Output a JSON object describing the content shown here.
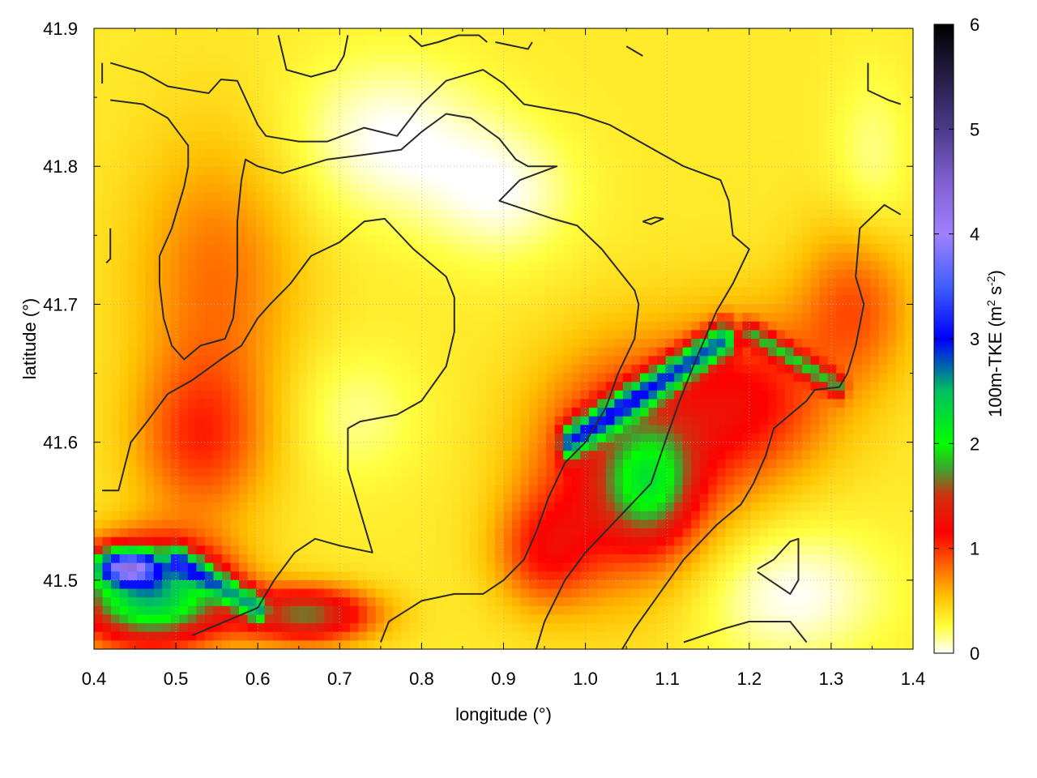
{
  "chart_data": {
    "type": "heatmap",
    "title": "",
    "xlabel": "longitude (°)",
    "ylabel": "latitude (°)",
    "xlim": [
      0.4,
      1.4
    ],
    "ylim": [
      41.45,
      41.9
    ],
    "x_ticks": [
      {
        "value": 0.4,
        "label": "0.4"
      },
      {
        "value": 0.5,
        "label": "0.5"
      },
      {
        "value": 0.6,
        "label": "0.6"
      },
      {
        "value": 0.7,
        "label": "0.7"
      },
      {
        "value": 0.8,
        "label": "0.8"
      },
      {
        "value": 0.9,
        "label": "0.9"
      },
      {
        "value": 1.0,
        "label": "1.0"
      },
      {
        "value": 1.1,
        "label": "1.1"
      },
      {
        "value": 1.2,
        "label": "1.2"
      },
      {
        "value": 1.3,
        "label": "1.3"
      },
      {
        "value": 1.4,
        "label": "1.4"
      }
    ],
    "y_ticks": [
      {
        "value": 41.5,
        "label": "41.5"
      },
      {
        "value": 41.6,
        "label": "41.6"
      },
      {
        "value": 41.7,
        "label": "41.7"
      },
      {
        "value": 41.8,
        "label": "41.8"
      },
      {
        "value": 41.9,
        "label": "41.9"
      }
    ],
    "grid": true,
    "colorbar": {
      "label": "100m-TKE (m² s⁻²)",
      "label_main": "100m-TKE (m",
      "label_sup1": "2",
      "label_mid": " s",
      "label_sup2": "-2",
      "label_end": ")",
      "range": [
        0,
        6
      ],
      "ticks": [
        {
          "value": 0,
          "label": "0"
        },
        {
          "value": 1,
          "label": "1"
        },
        {
          "value": 2,
          "label": "2"
        },
        {
          "value": 3,
          "label": "3"
        },
        {
          "value": 4,
          "label": "4"
        },
        {
          "value": 5,
          "label": "5"
        },
        {
          "value": 6,
          "label": "6"
        }
      ],
      "stops": [
        {
          "value": 0.0,
          "color": "#ffffff"
        },
        {
          "value": 0.25,
          "color": "#ffff40"
        },
        {
          "value": 0.55,
          "color": "#ffc000"
        },
        {
          "value": 0.85,
          "color": "#ff6000"
        },
        {
          "value": 1.15,
          "color": "#ff0000"
        },
        {
          "value": 1.5,
          "color": "#d03010"
        },
        {
          "value": 1.75,
          "color": "#40a030"
        },
        {
          "value": 2.0,
          "color": "#00ff00"
        },
        {
          "value": 2.5,
          "color": "#00c060"
        },
        {
          "value": 3.0,
          "color": "#0000ff"
        },
        {
          "value": 3.5,
          "color": "#4060ff"
        },
        {
          "value": 4.0,
          "color": "#a080ff"
        },
        {
          "value": 4.5,
          "color": "#8060d0"
        },
        {
          "value": 5.0,
          "color": "#4a3a8a"
        },
        {
          "value": 6.0,
          "color": "#000000"
        }
      ]
    },
    "field_features": [
      {
        "kind": "base",
        "value": 0.35
      },
      {
        "kind": "blob",
        "cx": 0.76,
        "cy": 41.82,
        "sx": 0.12,
        "sy": 0.06,
        "value": -0.35
      },
      {
        "kind": "blob",
        "cx": 0.9,
        "cy": 41.78,
        "sx": 0.09,
        "sy": 0.05,
        "value": -0.3
      },
      {
        "kind": "blob",
        "cx": 0.72,
        "cy": 41.62,
        "sx": 0.08,
        "sy": 0.05,
        "value": -0.2
      },
      {
        "kind": "blob",
        "cx": 1.25,
        "cy": 41.49,
        "sx": 0.12,
        "sy": 0.05,
        "value": -0.35
      },
      {
        "kind": "blob",
        "cx": 1.35,
        "cy": 41.8,
        "sx": 0.05,
        "sy": 0.07,
        "value": -0.2
      },
      {
        "kind": "blob",
        "cx": 0.55,
        "cy": 41.72,
        "sx": 0.1,
        "sy": 0.1,
        "value": 0.45
      },
      {
        "kind": "blob",
        "cx": 0.53,
        "cy": 41.6,
        "sx": 0.08,
        "sy": 0.06,
        "value": 0.6
      },
      {
        "kind": "blob",
        "cx": 1.05,
        "cy": 41.58,
        "sx": 0.11,
        "sy": 0.08,
        "value": 1.0
      },
      {
        "kind": "blob",
        "cx": 1.2,
        "cy": 41.63,
        "sx": 0.1,
        "sy": 0.06,
        "value": 0.75
      },
      {
        "kind": "blob",
        "cx": 1.33,
        "cy": 41.7,
        "sx": 0.07,
        "sy": 0.06,
        "value": 0.55
      },
      {
        "kind": "blob",
        "cx": 1.08,
        "cy": 41.57,
        "sx": 0.05,
        "sy": 0.04,
        "value": 0.9
      },
      {
        "kind": "blob",
        "cx": 0.95,
        "cy": 41.52,
        "sx": 0.06,
        "sy": 0.04,
        "value": 0.6
      },
      {
        "kind": "blob",
        "cx": 0.47,
        "cy": 41.49,
        "sx": 0.09,
        "sy": 0.035,
        "value": 2.2
      },
      {
        "kind": "blob",
        "cx": 0.44,
        "cy": 41.51,
        "sx": 0.04,
        "sy": 0.012,
        "value": 2.5
      },
      {
        "kind": "blob",
        "cx": 0.66,
        "cy": 41.475,
        "sx": 0.08,
        "sy": 0.02,
        "value": 1.3
      },
      {
        "kind": "ridge",
        "x1": 0.98,
        "y1": 41.6,
        "x2": 1.17,
        "y2": 41.675,
        "width": 0.012,
        "value": 1.9
      },
      {
        "kind": "ridge",
        "x1": 1.2,
        "y1": 41.68,
        "x2": 1.31,
        "y2": 41.64,
        "width": 0.008,
        "value": 1.0
      },
      {
        "kind": "ridge",
        "x1": 0.5,
        "y1": 41.515,
        "x2": 0.6,
        "y2": 41.48,
        "width": 0.01,
        "value": 1.4
      }
    ],
    "contours": [
      [
        [
          0.42,
          41.875
        ],
        [
          0.46,
          41.868
        ],
        [
          0.49,
          41.858
        ],
        [
          0.54,
          41.853
        ],
        [
          0.555,
          41.863
        ],
        [
          0.575,
          41.862
        ],
        [
          0.6,
          41.83
        ],
        [
          0.61,
          41.822
        ],
        [
          0.65,
          41.818
        ],
        [
          0.685,
          41.818
        ],
        [
          0.73,
          41.828
        ],
        [
          0.77,
          41.822
        ],
        [
          0.8,
          41.845
        ],
        [
          0.83,
          41.862
        ],
        [
          0.875,
          41.87
        ],
        [
          0.9,
          41.86
        ],
        [
          0.925,
          41.845
        ],
        [
          0.99,
          41.838
        ],
        [
          1.03,
          41.83
        ],
        [
          1.09,
          41.81
        ],
        [
          1.12,
          41.8
        ],
        [
          1.165,
          41.79
        ],
        [
          1.175,
          41.775
        ],
        [
          1.18,
          41.75
        ],
        [
          1.2,
          41.74
        ],
        [
          1.18,
          41.715
        ],
        [
          1.16,
          41.695
        ],
        [
          1.135,
          41.66
        ],
        [
          1.115,
          41.63
        ],
        [
          1.1,
          41.605
        ],
        [
          1.08,
          41.57
        ],
        [
          1.04,
          41.545
        ],
        [
          1.0,
          41.52
        ],
        [
          0.975,
          41.5
        ],
        [
          0.95,
          41.47
        ],
        [
          0.94,
          41.45
        ]
      ],
      [
        [
          0.42,
          41.848
        ],
        [
          0.46,
          41.845
        ],
        [
          0.49,
          41.835
        ],
        [
          0.515,
          41.815
        ],
        [
          0.515,
          41.8
        ],
        [
          0.51,
          41.785
        ],
        [
          0.495,
          41.755
        ],
        [
          0.48,
          41.735
        ],
        [
          0.48,
          41.715
        ],
        [
          0.485,
          41.69
        ],
        [
          0.495,
          41.67
        ],
        [
          0.51,
          41.66
        ],
        [
          0.53,
          41.67
        ],
        [
          0.56,
          41.675
        ],
        [
          0.57,
          41.69
        ],
        [
          0.575,
          41.72
        ],
        [
          0.575,
          41.76
        ],
        [
          0.58,
          41.79
        ],
        [
          0.585,
          41.805
        ],
        [
          0.6,
          41.8
        ],
        [
          0.63,
          41.795
        ],
        [
          0.685,
          41.805
        ],
        [
          0.725,
          41.808
        ],
        [
          0.775,
          41.812
        ],
        [
          0.8,
          41.825
        ],
        [
          0.83,
          41.838
        ],
        [
          0.86,
          41.835
        ],
        [
          0.895,
          41.82
        ],
        [
          0.915,
          41.805
        ],
        [
          0.93,
          41.8
        ],
        [
          0.945,
          41.8
        ],
        [
          0.965,
          41.8
        ],
        [
          0.92,
          41.79
        ],
        [
          0.895,
          41.775
        ],
        [
          0.92,
          41.77
        ],
        [
          0.96,
          41.762
        ],
        [
          0.99,
          41.757
        ],
        [
          1.02,
          41.74
        ],
        [
          1.04,
          41.725
        ],
        [
          1.06,
          41.71
        ],
        [
          1.065,
          41.7
        ],
        [
          1.06,
          41.675
        ],
        [
          1.04,
          41.65
        ],
        [
          1.025,
          41.625
        ],
        [
          1.0,
          41.6
        ],
        [
          0.975,
          41.585
        ],
        [
          0.955,
          41.56
        ],
        [
          0.94,
          41.535
        ],
        [
          0.925,
          41.515
        ],
        [
          0.9,
          41.5
        ],
        [
          0.875,
          41.49
        ],
        [
          0.84,
          41.49
        ],
        [
          0.8,
          41.485
        ],
        [
          0.76,
          41.47
        ],
        [
          0.75,
          41.455
        ]
      ],
      [
        [
          0.41,
          41.565
        ],
        [
          0.43,
          41.565
        ],
        [
          0.445,
          41.6
        ],
        [
          0.465,
          41.615
        ],
        [
          0.49,
          41.635
        ],
        [
          0.52,
          41.645
        ],
        [
          0.555,
          41.66
        ],
        [
          0.58,
          41.67
        ],
        [
          0.6,
          41.69
        ],
        [
          0.615,
          41.7
        ],
        [
          0.64,
          41.715
        ],
        [
          0.665,
          41.735
        ],
        [
          0.7,
          41.745
        ],
        [
          0.73,
          41.76
        ],
        [
          0.755,
          41.762
        ],
        [
          0.79,
          41.74
        ],
        [
          0.81,
          41.73
        ],
        [
          0.83,
          41.72
        ],
        [
          0.84,
          41.705
        ],
        [
          0.84,
          41.68
        ],
        [
          0.83,
          41.655
        ],
        [
          0.8,
          41.63
        ],
        [
          0.77,
          41.62
        ],
        [
          0.725,
          41.615
        ],
        [
          0.71,
          41.61
        ],
        [
          0.71,
          41.58
        ],
        [
          0.72,
          41.56
        ],
        [
          0.73,
          41.54
        ],
        [
          0.74,
          41.52
        ],
        [
          0.7,
          41.525
        ],
        [
          0.67,
          41.53
        ],
        [
          0.645,
          41.52
        ],
        [
          0.62,
          41.5
        ],
        [
          0.6,
          41.48
        ],
        [
          0.56,
          41.47
        ],
        [
          0.52,
          41.46
        ]
      ],
      [
        [
          1.385,
          41.765
        ],
        [
          1.365,
          41.772
        ],
        [
          1.335,
          41.755
        ],
        [
          1.33,
          41.72
        ],
        [
          1.34,
          41.7
        ],
        [
          1.33,
          41.67
        ],
        [
          1.32,
          41.65
        ],
        [
          1.31,
          41.64
        ],
        [
          1.28,
          41.638
        ],
        [
          1.27,
          41.63
        ],
        [
          1.25,
          41.62
        ],
        [
          1.23,
          41.61
        ],
        [
          1.22,
          41.59
        ],
        [
          1.205,
          41.57
        ],
        [
          1.19,
          41.555
        ],
        [
          1.16,
          41.54
        ],
        [
          1.12,
          41.515
        ],
        [
          1.09,
          41.49
        ],
        [
          1.06,
          41.465
        ],
        [
          1.045,
          41.45
        ]
      ],
      [
        [
          0.41,
          41.875
        ],
        [
          0.41,
          41.86
        ]
      ],
      [
        [
          0.42,
          41.755
        ],
        [
          0.42,
          41.733
        ],
        [
          0.415,
          41.73
        ]
      ],
      [
        [
          0.625,
          41.895
        ],
        [
          0.635,
          41.87
        ],
        [
          0.665,
          41.865
        ],
        [
          0.695,
          41.87
        ],
        [
          0.705,
          41.88
        ],
        [
          0.71,
          41.895
        ]
      ],
      [
        [
          0.785,
          41.895
        ],
        [
          0.8,
          41.887
        ],
        [
          0.82,
          41.89
        ],
        [
          0.845,
          41.895
        ],
        [
          0.87,
          41.895
        ],
        [
          0.88,
          41.89
        ]
      ],
      [
        [
          0.89,
          41.89
        ],
        [
          0.93,
          41.885
        ],
        [
          0.935,
          41.89
        ]
      ],
      [
        [
          1.05,
          41.887
        ],
        [
          1.07,
          41.88
        ]
      ],
      [
        [
          1.345,
          41.875
        ],
        [
          1.345,
          41.855
        ],
        [
          1.37,
          41.848
        ],
        [
          1.385,
          41.845
        ]
      ],
      [
        [
          1.07,
          41.76
        ],
        [
          1.085,
          41.763
        ],
        [
          1.095,
          41.762
        ],
        [
          1.08,
          41.758
        ],
        [
          1.07,
          41.76
        ]
      ],
      [
        [
          1.21,
          41.508
        ],
        [
          1.23,
          41.515
        ],
        [
          1.25,
          41.528
        ],
        [
          1.26,
          41.53
        ],
        [
          1.26,
          41.5
        ],
        [
          1.25,
          41.49
        ],
        [
          1.21,
          41.506
        ]
      ],
      [
        [
          1.12,
          41.455
        ],
        [
          1.17,
          41.465
        ],
        [
          1.2,
          41.47
        ],
        [
          1.25,
          41.47
        ],
        [
          1.27,
          41.455
        ]
      ]
    ]
  }
}
